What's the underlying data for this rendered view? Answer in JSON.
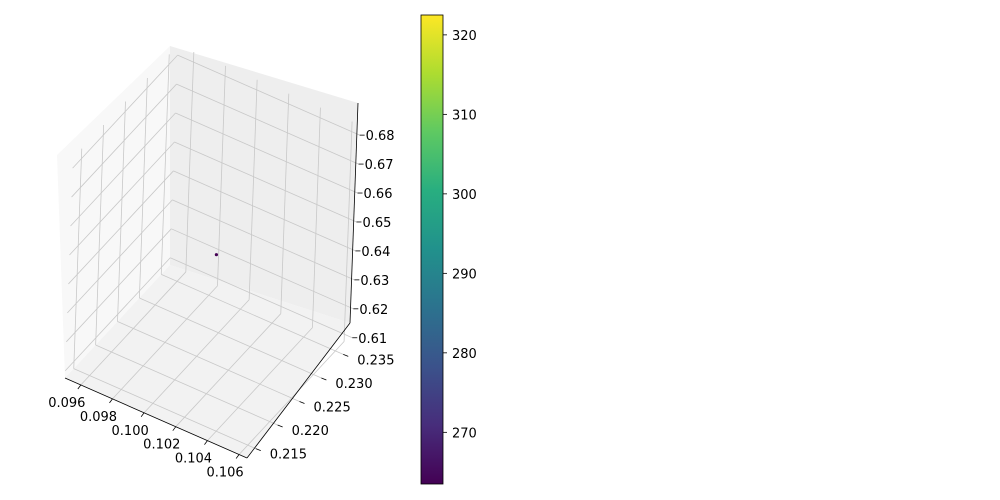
{
  "chart_data": {
    "type": "scatter",
    "projection": "3d",
    "title": "",
    "xlabel": "",
    "ylabel": "",
    "zlabel": "",
    "x_ticks": [
      "0.096",
      "0.098",
      "0.100",
      "0.102",
      "0.104",
      "0.106"
    ],
    "y_ticks": [
      "0.215",
      "0.220",
      "0.225",
      "0.230",
      "0.235"
    ],
    "z_ticks": [
      "0.61",
      "0.62",
      "0.63",
      "0.64",
      "0.65",
      "0.66",
      "0.67",
      "0.68"
    ],
    "xlim": [
      0.095,
      0.1065
    ],
    "ylim": [
      0.213,
      0.237
    ],
    "zlim": [
      0.6075,
      0.6835
    ],
    "points": [
      {
        "x": 0.101,
        "y": 0.225,
        "z": 0.645,
        "c": 265
      }
    ],
    "colorbar": {
      "colormap": "viridis",
      "range": [
        263.5,
        322.5
      ],
      "ticks": [
        "270",
        "280",
        "290",
        "300",
        "310",
        "320"
      ]
    },
    "grid": true,
    "pane_colors": {
      "floor": "#f2f2f2",
      "left": "#f8f8f8",
      "back": "#eeeeee"
    },
    "grid_color": "#c8c8c8",
    "point_color": "#440154"
  }
}
